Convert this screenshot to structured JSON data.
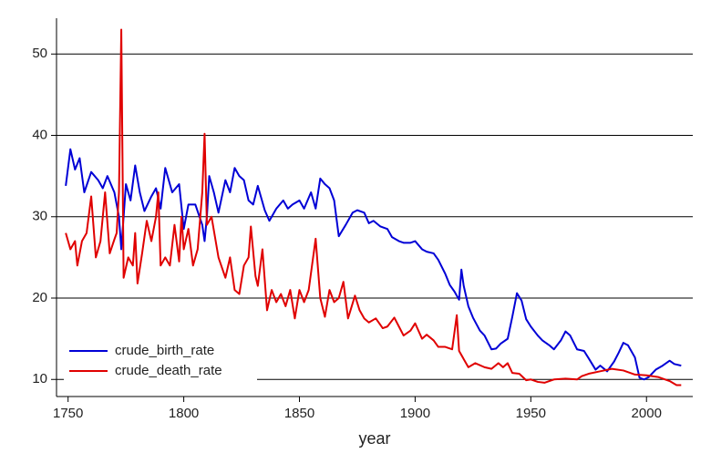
{
  "chart_data": {
    "type": "line",
    "x_label": "year",
    "xlim": [
      1745,
      2020
    ],
    "xticks": [
      1750,
      1800,
      1850,
      1900,
      1950,
      2000
    ],
    "ylim": [
      7.9,
      54.4
    ],
    "yticks": [
      10,
      20,
      30,
      40,
      50
    ],
    "grid": true,
    "legend": "lower left",
    "series": [
      {
        "name": "crude_birth_rate",
        "color": "#0000d6",
        "x": [
          1749,
          1751,
          1753,
          1755,
          1757,
          1760,
          1763,
          1765,
          1767,
          1770,
          1772,
          1773,
          1775,
          1777,
          1779,
          1781,
          1783,
          1786,
          1788,
          1790,
          1792,
          1795,
          1798,
          1800,
          1802,
          1805,
          1808,
          1809,
          1810,
          1811,
          1813,
          1815,
          1818,
          1820,
          1822,
          1824,
          1826,
          1828,
          1830,
          1832,
          1835,
          1837,
          1840,
          1843,
          1845,
          1847,
          1850,
          1852,
          1855,
          1857,
          1859,
          1861,
          1863,
          1865,
          1867,
          1870,
          1873,
          1875,
          1878,
          1880,
          1882,
          1885,
          1888,
          1890,
          1893,
          1895,
          1898,
          1900,
          1903,
          1905,
          1908,
          1910,
          1913,
          1915,
          1917,
          1918,
          1919,
          1920,
          1921,
          1923,
          1925,
          1928,
          1930,
          1933,
          1935,
          1937,
          1940,
          1942,
          1944,
          1946,
          1948,
          1950,
          1953,
          1955,
          1958,
          1960,
          1963,
          1965,
          1967,
          1970,
          1973,
          1975,
          1978,
          1980,
          1983,
          1986,
          1988,
          1990,
          1992,
          1995,
          1997,
          1999,
          2001,
          2004,
          2007,
          2010,
          2012,
          2015
        ],
        "values": [
          33.8,
          38.3,
          35.8,
          37.2,
          33,
          35.5,
          34.5,
          33.5,
          35,
          33,
          30,
          26,
          34,
          32,
          36.3,
          33,
          30.7,
          32.5,
          33.5,
          31,
          36,
          33,
          34,
          28.5,
          31.5,
          31.5,
          29,
          27,
          30,
          35,
          33,
          30.5,
          34.5,
          33,
          36,
          35,
          34.5,
          32,
          31.5,
          33.8,
          30.8,
          29.5,
          31,
          32,
          31,
          31.5,
          32,
          31,
          33,
          31,
          34.7,
          34,
          33.5,
          32,
          27.6,
          29,
          30.5,
          30.8,
          30.5,
          29.2,
          29.5,
          28.8,
          28.5,
          27.5,
          27,
          26.8,
          26.8,
          27,
          26,
          25.7,
          25.5,
          24.7,
          23,
          21.6,
          20.8,
          20.3,
          19.8,
          23.5,
          21.5,
          19,
          17.6,
          16,
          15.4,
          13.7,
          13.8,
          14.4,
          15,
          17.7,
          20.6,
          19.7,
          17.4,
          16.5,
          15.4,
          14.8,
          14.2,
          13.7,
          14.8,
          15.9,
          15.4,
          13.7,
          13.5,
          12.6,
          11.2,
          11.7,
          11,
          12.2,
          13.3,
          14.5,
          14.2,
          12.7,
          10.2,
          10,
          10.3,
          11.2,
          11.7,
          12.3,
          11.9,
          11.7
        ]
      },
      {
        "name": "crude_death_rate",
        "color": "#e00000",
        "x": [
          1749,
          1751,
          1753,
          1754,
          1756,
          1758,
          1760,
          1762,
          1764,
          1766,
          1768,
          1770,
          1771,
          1772,
          1773,
          1774,
          1776,
          1778,
          1779,
          1780,
          1782,
          1784,
          1786,
          1788,
          1789,
          1790,
          1792,
          1794,
          1796,
          1798,
          1799,
          1800,
          1802,
          1804,
          1806,
          1808,
          1809,
          1810,
          1812,
          1815,
          1818,
          1820,
          1822,
          1824,
          1826,
          1828,
          1829,
          1831,
          1832,
          1834,
          1836,
          1838,
          1840,
          1842,
          1844,
          1846,
          1848,
          1850,
          1852,
          1854,
          1857,
          1859,
          1861,
          1863,
          1865,
          1867,
          1869,
          1871,
          1874,
          1876,
          1878,
          1880,
          1883,
          1886,
          1888,
          1891,
          1893,
          1895,
          1898,
          1900,
          1903,
          1905,
          1908,
          1910,
          1913,
          1916,
          1918,
          1919,
          1921,
          1923,
          1926,
          1930,
          1933,
          1936,
          1938,
          1940,
          1942,
          1945,
          1948,
          1950,
          1953,
          1956,
          1960,
          1965,
          1970,
          1972,
          1975,
          1980,
          1985,
          1990,
          1995,
          2000,
          2005,
          2010,
          2013,
          2015
        ],
        "values": [
          28,
          26,
          27,
          24,
          27,
          28,
          32.5,
          25,
          27,
          33,
          25.5,
          27.2,
          28,
          33,
          53,
          22.5,
          25,
          24,
          28,
          21.8,
          25.5,
          29.5,
          27,
          30,
          33,
          24,
          25,
          24,
          29,
          24.5,
          30,
          26,
          28.5,
          24,
          26,
          33,
          40.2,
          29,
          30,
          25,
          22.5,
          25,
          21,
          20.5,
          24,
          25,
          28.8,
          22.7,
          21.5,
          26,
          18.5,
          21,
          19.5,
          20.5,
          19,
          21,
          17.5,
          21,
          19.5,
          21,
          27.3,
          20,
          17.7,
          21,
          19.5,
          20,
          22,
          17.5,
          20.3,
          18.5,
          17.5,
          17,
          17.5,
          16.3,
          16.5,
          17.6,
          16.5,
          15.4,
          16,
          16.9,
          15,
          15.5,
          14.8,
          14,
          14,
          13.7,
          17.9,
          13.5,
          12.5,
          11.5,
          12,
          11.5,
          11.3,
          12,
          11.5,
          12,
          10.8,
          10.7,
          9.9,
          10,
          9.7,
          9.6,
          10,
          10.1,
          10,
          10.4,
          10.7,
          11,
          11.3,
          11.1,
          10.6,
          10.5,
          10.3,
          9.8,
          9.3,
          9.3
        ]
      }
    ]
  }
}
